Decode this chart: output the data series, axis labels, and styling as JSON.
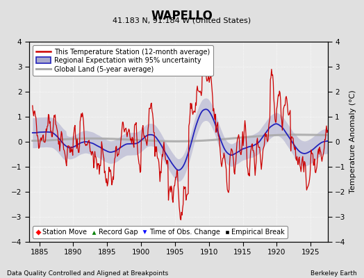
{
  "title": "WAPELLO",
  "subtitle": "41.183 N, 91.184 W (United States)",
  "xlabel_left": "Data Quality Controlled and Aligned at Breakpoints",
  "xlabel_right": "Berkeley Earth",
  "ylabel": "Temperature Anomaly (°C)",
  "xlim": [
    1883.5,
    1927.5
  ],
  "ylim": [
    -4,
    4
  ],
  "yticks": [
    -4,
    -3,
    -2,
    -1,
    0,
    1,
    2,
    3,
    4
  ],
  "xticks": [
    1885,
    1890,
    1895,
    1900,
    1905,
    1910,
    1915,
    1920,
    1925
  ],
  "bg_color": "#e0e0e0",
  "plot_bg_color": "#ebebeb",
  "grid_color": "#ffffff",
  "station_color": "#cc0000",
  "regional_color": "#2222bb",
  "regional_fill_color": "#aaaacc",
  "global_color": "#aaaaaa",
  "legend_station": "This Temperature Station (12-month average)",
  "legend_regional": "Regional Expectation with 95% uncertainty",
  "legend_global": "Global Land (5-year average)",
  "legend_station_move": "Station Move",
  "legend_record_gap": "Record Gap",
  "legend_obs_change": "Time of Obs. Change",
  "legend_empirical": "Empirical Break",
  "seed": 42
}
